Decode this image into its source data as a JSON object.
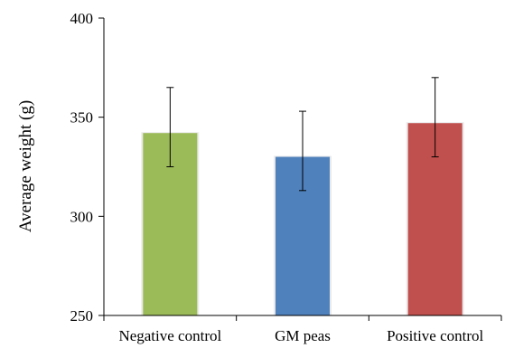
{
  "chart_data": {
    "type": "bar",
    "title": "",
    "xlabel": "",
    "ylabel": "Average  weight  (g)",
    "ylim": [
      250,
      400
    ],
    "yticks": [
      "250",
      "300",
      "350",
      "400"
    ],
    "categories": [
      "Negative control",
      "GM peas",
      "Positive control"
    ],
    "values": [
      342,
      330,
      347
    ],
    "error_low": [
      325,
      313,
      330
    ],
    "error_high": [
      365,
      353,
      370
    ],
    "colors": [
      "#9bbb59",
      "#4f81bd",
      "#c0504d"
    ],
    "grid": false,
    "legend": "none"
  }
}
